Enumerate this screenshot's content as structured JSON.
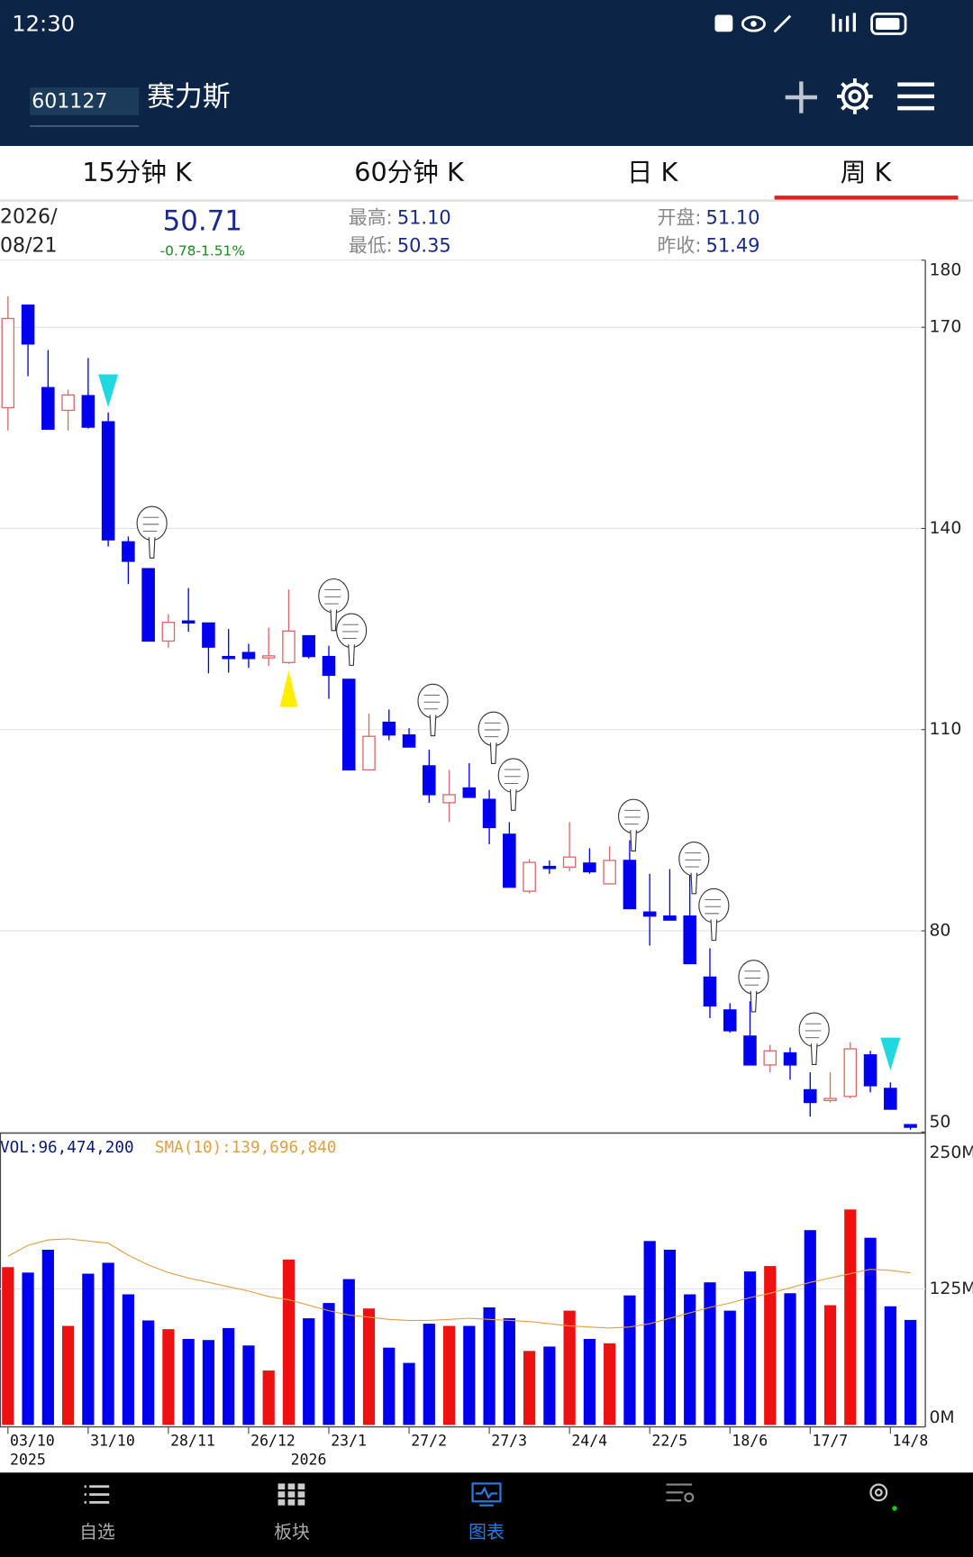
{
  "status_bar": {
    "time": "12:30"
  },
  "header": {
    "code": "601127",
    "name": "赛力斯"
  },
  "tabs": [
    "15分钟 K",
    "60分钟 K",
    "日 K",
    "周 K"
  ],
  "quote": {
    "date": [
      "2026/",
      "08/21"
    ],
    "price": "50.71",
    "change": "-0.78-1.51%",
    "high_label": "最高:",
    "high": "51.10",
    "low_label": "最低:",
    "low": "50.35",
    "open_label": "开盘:",
    "open": "51.10",
    "prev_label": "昨收:",
    "prev": "51.49"
  },
  "chart_data": [
    {
      "type": "candlestick",
      "categories": [
        "03/10",
        null,
        null,
        null,
        "31/10",
        null,
        null,
        null,
        "28/11",
        null,
        null,
        null,
        "26/12",
        null,
        null,
        null,
        "23/1",
        null,
        null,
        null,
        "27/2",
        null,
        null,
        null,
        "27/3",
        null,
        null,
        null,
        "24/4",
        null,
        null,
        null,
        "22/5",
        null,
        null,
        null,
        "18/6",
        null,
        null,
        null,
        "17/7",
        null,
        null,
        null,
        "14/8",
        null
      ],
      "x_sublabels": [
        "2025",
        null,
        null,
        null,
        null,
        null,
        null,
        null,
        null,
        null,
        null,
        null,
        null,
        null,
        "2026",
        null,
        null,
        null,
        null,
        null,
        null,
        null,
        null,
        null,
        null,
        null,
        null,
        null,
        null,
        null,
        null,
        null,
        null,
        null,
        null,
        null,
        null,
        null,
        null,
        null,
        null,
        null,
        null,
        null,
        null,
        null
      ],
      "open": [
        158.0,
        173.3,
        161.0,
        157.6,
        159.8,
        155.9,
        138.0,
        134.0,
        123.2,
        126.2,
        125.9,
        120.9,
        121.5,
        120.7,
        120.0,
        124.0,
        120.9,
        117.5,
        104.0,
        111.1,
        109.2,
        104.6,
        99.1,
        101.3,
        99.6,
        94.4,
        85.9,
        89.6,
        89.5,
        90.1,
        87.0,
        90.5,
        82.8,
        82.2,
        82.2,
        73.1,
        68.2,
        64.3,
        60.0,
        61.8,
        56.3,
        54.7,
        55.3,
        61.5,
        56.5,
        51.1
      ],
      "high": [
        174.6,
        173.3,
        166.6,
        160.7,
        165.4,
        157.3,
        138.8,
        134.0,
        127.2,
        131.1,
        125.9,
        125.0,
        122.8,
        125.2,
        130.9,
        124.0,
        122.5,
        117.5,
        112.4,
        113.0,
        110.2,
        107.0,
        104.0,
        105.0,
        101.0,
        96.2,
        90.7,
        90.5,
        96.2,
        92.3,
        92.6,
        93.5,
        88.5,
        89.2,
        89.9,
        77.4,
        69.2,
        69.5,
        63.0,
        62.6,
        58.9,
        58.9,
        63.4,
        62.1,
        57.4,
        51.1
      ],
      "low": [
        154.6,
        162.7,
        154.8,
        154.6,
        154.9,
        137.3,
        131.7,
        123.2,
        122.2,
        124.6,
        118.4,
        118.5,
        119.2,
        119.5,
        119.8,
        120.6,
        114.6,
        104.0,
        104.0,
        108.4,
        107.4,
        99.1,
        96.2,
        99.9,
        92.9,
        86.5,
        85.6,
        88.5,
        88.9,
        88.5,
        87.0,
        83.3,
        77.8,
        81.6,
        75.1,
        67.0,
        64.8,
        60.0,
        58.9,
        57.8,
        52.3,
        54.4,
        55.0,
        55.9,
        53.4,
        50.35
      ],
      "close": [
        171.3,
        167.5,
        154.8,
        159.9,
        155.1,
        138.3,
        135.1,
        123.2,
        126.0,
        125.9,
        122.3,
        120.6,
        120.6,
        121.0,
        124.7,
        120.9,
        118.1,
        104.0,
        109.0,
        109.2,
        107.4,
        100.3,
        100.3,
        99.9,
        95.4,
        86.5,
        90.2,
        89.3,
        91.0,
        88.8,
        90.5,
        83.3,
        82.2,
        81.6,
        75.1,
        68.8,
        65.1,
        60.0,
        62.1,
        60.0,
        54.4,
        55.0,
        62.4,
        56.9,
        53.4,
        50.71
      ],
      "up_color": "#d86a6a",
      "down_color": "#0000ee",
      "ylim": [
        50,
        180
      ],
      "yticks": [
        50,
        80,
        110,
        140,
        170,
        180
      ],
      "grid": true
    },
    {
      "type": "bar",
      "series": [
        {
          "name": "VOL:96,474,200",
          "color": "#0a1a7a",
          "up_color": "#ee1111",
          "down_color": "#0000ee",
          "values": [
            145,
            140,
            161,
            91,
            139,
            149,
            120,
            96,
            88,
            79,
            78,
            89,
            73,
            50,
            152,
            98,
            112,
            134,
            107,
            71,
            57,
            93,
            91,
            91,
            108,
            98,
            68,
            72,
            105,
            79,
            75,
            119,
            169,
            161,
            120,
            131,
            105,
            141,
            146,
            121,
            179,
            110,
            198,
            172,
            109,
            96.4742
          ]
        },
        {
          "name": "SMA(10):139,696,840",
          "color": "#e0a040",
          "values": [
            155,
            165,
            170,
            171,
            169,
            167,
            156,
            147,
            140,
            135,
            131,
            127,
            123,
            118,
            115,
            110,
            105,
            101,
            99,
            97,
            96,
            96,
            97,
            98,
            97,
            96,
            95,
            93,
            91,
            90,
            89,
            90,
            93,
            98,
            103,
            108,
            112,
            117,
            121,
            126,
            131,
            135,
            139,
            143,
            142,
            139.69684
          ]
        }
      ],
      "ylim": [
        0,
        250
      ],
      "yticks": [
        {
          "value": 0,
          "label": "0M"
        },
        {
          "value": 125,
          "label": "125M"
        },
        {
          "value": 250,
          "label": "250M"
        }
      ],
      "grid": true
    }
  ],
  "nav": [
    "自选",
    "板块",
    "图表"
  ]
}
